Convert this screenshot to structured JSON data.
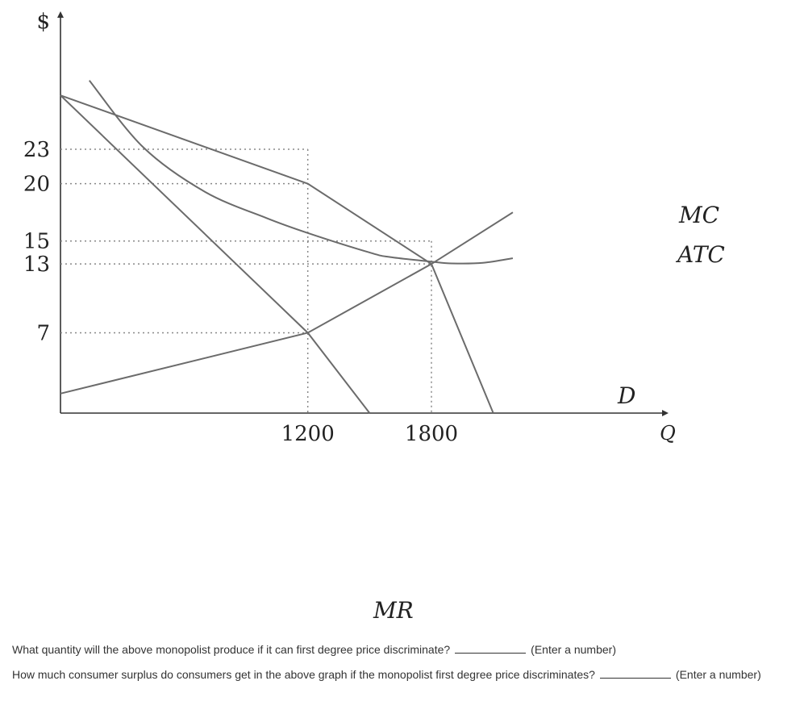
{
  "chart_data": {
    "type": "line",
    "y_axis_symbol": "$",
    "x_axis_symbol": "Q",
    "x_ticks": [
      1200,
      1800
    ],
    "y_ticks": [
      23,
      20,
      15,
      13,
      7
    ],
    "series": [
      {
        "name": "D",
        "points": [
          [
            0,
            27.7
          ],
          [
            1200,
            20
          ],
          [
            1800,
            13
          ],
          [
            2100,
            0
          ]
        ]
      },
      {
        "name": "MR",
        "points": [
          [
            0,
            27.7
          ],
          [
            1200,
            7
          ],
          [
            1500,
            0
          ]
        ]
      },
      {
        "name": "MC",
        "points": [
          [
            0,
            1.7
          ],
          [
            1200,
            7
          ],
          [
            1800,
            13
          ],
          [
            2195,
            17.5
          ]
        ]
      },
      {
        "name": "ATC",
        "points": [
          [
            140,
            29
          ],
          [
            400,
            23.2
          ],
          [
            700,
            19.3
          ],
          [
            1000,
            17
          ],
          [
            1200,
            15.7
          ],
          [
            1500,
            14
          ],
          [
            1600,
            13.6
          ],
          [
            1800,
            13.2
          ],
          [
            1900,
            13.05
          ],
          [
            2050,
            13.1
          ],
          [
            2195,
            13.5
          ]
        ]
      }
    ],
    "curve_labels": [
      "MC",
      "ATC",
      "D",
      "MR"
    ]
  },
  "questions": [
    {
      "text": "What quantity will the above monopolist produce if it can first degree price discriminate?",
      "hint": "(Enter a number)"
    },
    {
      "text": "How much consumer surplus do consumers get in the above graph if the monopolist first degree price discriminates?",
      "hint": "(Enter a number)"
    }
  ]
}
